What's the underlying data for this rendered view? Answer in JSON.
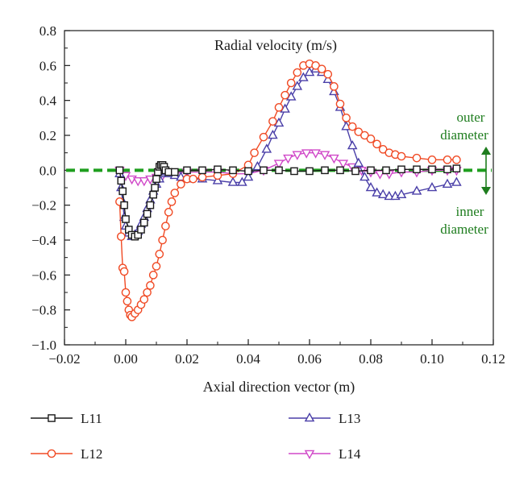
{
  "chart_data": {
    "type": "line",
    "title": "Radial velocity (m/s)",
    "xlabel": "Axial direction vector (m)",
    "ylabel": "",
    "xlim": [
      -0.02,
      0.12
    ],
    "ylim": [
      -1.0,
      0.8
    ],
    "xticks": [
      "−0.02",
      "0.00",
      "0.02",
      "0.04",
      "0.06",
      "0.08",
      "0.10",
      "0.12"
    ],
    "xtick_values": [
      -0.02,
      0.0,
      0.02,
      0.04,
      0.06,
      0.08,
      0.1,
      0.12
    ],
    "yticks": [
      "0.8",
      "0.6",
      "0.4",
      "0.2",
      "0.0",
      "−0.2",
      "−0.4",
      "−0.6",
      "−0.8",
      "−1.0"
    ],
    "ytick_values": [
      0.8,
      0.6,
      0.4,
      0.2,
      0.0,
      -0.2,
      -0.4,
      -0.6,
      -0.8,
      -1.0
    ],
    "grid": false,
    "legend_position": "below plot",
    "annotations": {
      "outer": [
        "outer",
        "diameter"
      ],
      "inner": [
        "inner",
        "diameter"
      ]
    },
    "reference_line": {
      "y": 0.0,
      "color": "#1e9e1e",
      "style": "dashed"
    },
    "series": [
      {
        "name": "L11",
        "color": "#1a1a1a",
        "marker": "square",
        "x": [
          -0.002,
          -0.0015,
          -0.001,
          -0.0005,
          0.0,
          0.001,
          0.002,
          0.003,
          0.004,
          0.005,
          0.006,
          0.007,
          0.008,
          0.009,
          0.0095,
          0.01,
          0.0105,
          0.011,
          0.0115,
          0.012,
          0.0125,
          0.013,
          0.014,
          0.016,
          0.02,
          0.025,
          0.03,
          0.035,
          0.04,
          0.045,
          0.05,
          0.055,
          0.06,
          0.065,
          0.07,
          0.075,
          0.08,
          0.085,
          0.09,
          0.095,
          0.1,
          0.105,
          0.108
        ],
        "y": [
          0.0,
          -0.06,
          -0.12,
          -0.2,
          -0.28,
          -0.34,
          -0.37,
          -0.38,
          -0.37,
          -0.34,
          -0.3,
          -0.25,
          -0.2,
          -0.14,
          -0.1,
          -0.05,
          -0.01,
          0.02,
          0.03,
          0.03,
          0.02,
          0.0,
          -0.01,
          -0.01,
          0.0,
          0.0,
          0.005,
          0.0,
          -0.005,
          0.0,
          0.0,
          -0.005,
          -0.005,
          0.0,
          0.0,
          -0.005,
          0.0,
          0.0,
          0.005,
          0.005,
          0.005,
          0.005,
          0.01
        ]
      },
      {
        "name": "L12",
        "color": "#f04a24",
        "marker": "circle",
        "x": [
          -0.002,
          -0.0015,
          -0.001,
          -0.0005,
          0.0,
          0.0005,
          0.001,
          0.0015,
          0.002,
          0.003,
          0.004,
          0.005,
          0.006,
          0.007,
          0.008,
          0.009,
          0.01,
          0.011,
          0.012,
          0.013,
          0.014,
          0.015,
          0.016,
          0.018,
          0.02,
          0.022,
          0.025,
          0.03,
          0.035,
          0.04,
          0.042,
          0.045,
          0.048,
          0.05,
          0.052,
          0.054,
          0.056,
          0.058,
          0.06,
          0.062,
          0.064,
          0.066,
          0.068,
          0.07,
          0.072,
          0.074,
          0.076,
          0.078,
          0.08,
          0.082,
          0.084,
          0.086,
          0.088,
          0.09,
          0.095,
          0.1,
          0.105,
          0.108
        ],
        "y": [
          -0.18,
          -0.38,
          -0.56,
          -0.58,
          -0.7,
          -0.75,
          -0.8,
          -0.83,
          -0.84,
          -0.82,
          -0.8,
          -0.77,
          -0.74,
          -0.7,
          -0.66,
          -0.6,
          -0.55,
          -0.48,
          -0.4,
          -0.32,
          -0.24,
          -0.18,
          -0.13,
          -0.08,
          -0.05,
          -0.05,
          -0.04,
          -0.03,
          -0.02,
          0.03,
          0.1,
          0.19,
          0.28,
          0.36,
          0.43,
          0.5,
          0.56,
          0.6,
          0.61,
          0.6,
          0.58,
          0.55,
          0.48,
          0.38,
          0.3,
          0.25,
          0.22,
          0.2,
          0.18,
          0.15,
          0.12,
          0.1,
          0.09,
          0.08,
          0.07,
          0.06,
          0.06,
          0.06
        ]
      },
      {
        "name": "L13",
        "color": "#4a3fa8",
        "marker": "triangle-up",
        "x": [
          -0.002,
          -0.0015,
          -0.001,
          -0.0005,
          0.0,
          0.001,
          0.002,
          0.003,
          0.004,
          0.005,
          0.006,
          0.007,
          0.008,
          0.009,
          0.01,
          0.011,
          0.012,
          0.013,
          0.014,
          0.016,
          0.018,
          0.02,
          0.025,
          0.03,
          0.035,
          0.038,
          0.04,
          0.043,
          0.046,
          0.048,
          0.05,
          0.052,
          0.054,
          0.056,
          0.058,
          0.06,
          0.062,
          0.064,
          0.066,
          0.068,
          0.07,
          0.072,
          0.074,
          0.076,
          0.078,
          0.08,
          0.082,
          0.084,
          0.086,
          0.088,
          0.09,
          0.095,
          0.1,
          0.105,
          0.108
        ],
        "y": [
          -0.02,
          -0.1,
          -0.18,
          -0.27,
          -0.32,
          -0.36,
          -0.38,
          -0.37,
          -0.35,
          -0.31,
          -0.27,
          -0.22,
          -0.17,
          -0.12,
          -0.08,
          -0.05,
          -0.02,
          -0.01,
          -0.02,
          -0.03,
          -0.04,
          -0.05,
          -0.05,
          -0.06,
          -0.07,
          -0.07,
          -0.04,
          0.02,
          0.12,
          0.2,
          0.27,
          0.35,
          0.42,
          0.48,
          0.53,
          0.56,
          0.58,
          0.56,
          0.52,
          0.45,
          0.36,
          0.25,
          0.14,
          0.04,
          -0.04,
          -0.1,
          -0.13,
          -0.14,
          -0.15,
          -0.15,
          -0.14,
          -0.12,
          -0.1,
          -0.08,
          -0.07
        ]
      },
      {
        "name": "L14",
        "color": "#d048c8",
        "marker": "triangle-down",
        "x": [
          -0.002,
          0.0,
          0.002,
          0.004,
          0.006,
          0.008,
          0.01,
          0.012,
          0.015,
          0.02,
          0.025,
          0.03,
          0.035,
          0.04,
          0.045,
          0.05,
          0.053,
          0.056,
          0.059,
          0.062,
          0.065,
          0.068,
          0.071,
          0.074,
          0.077,
          0.08,
          0.083,
          0.086,
          0.09,
          0.095,
          0.1,
          0.105,
          0.108
        ],
        "y": [
          0.0,
          -0.03,
          -0.05,
          -0.06,
          -0.06,
          -0.05,
          -0.04,
          -0.03,
          -0.02,
          -0.01,
          -0.01,
          -0.01,
          -0.02,
          -0.02,
          0.0,
          0.04,
          0.07,
          0.09,
          0.1,
          0.1,
          0.09,
          0.07,
          0.04,
          0.02,
          0.0,
          -0.01,
          -0.02,
          -0.02,
          -0.01,
          -0.01,
          0.0,
          0.0,
          0.0
        ]
      }
    ]
  }
}
